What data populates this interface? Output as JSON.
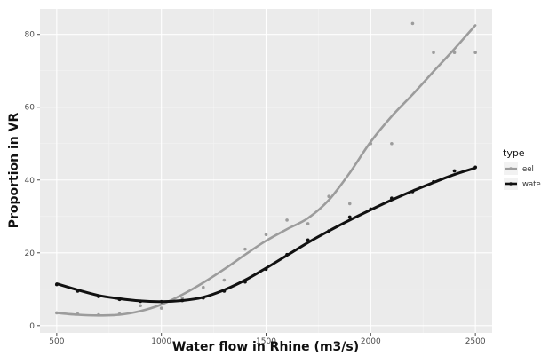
{
  "chart_data": {
    "type": "scatter",
    "xlabel": "Water flow in Rhine (m3/s)",
    "ylabel": "Proportion in VR",
    "xlim": [
      420,
      2580
    ],
    "ylim": [
      -2,
      87
    ],
    "x_ticks": [
      500,
      1000,
      1500,
      2000,
      2500
    ],
    "y_ticks": [
      0,
      20,
      40,
      60,
      80
    ],
    "grid": true,
    "legend": {
      "title": "type",
      "placement": "right"
    },
    "series": [
      {
        "name": "eel",
        "color": "#9c9c9c",
        "points": [
          [
            500,
            3.5
          ],
          [
            600,
            3.2
          ],
          [
            700,
            3.0
          ],
          [
            800,
            3.2
          ],
          [
            900,
            5.5
          ],
          [
            1000,
            4.8
          ],
          [
            1100,
            7.5
          ],
          [
            1200,
            10.5
          ],
          [
            1300,
            12.5
          ],
          [
            1400,
            21.0
          ],
          [
            1500,
            25.0
          ],
          [
            1600,
            29.0
          ],
          [
            1700,
            28.0
          ],
          [
            1800,
            35.5
          ],
          [
            1900,
            33.5
          ],
          [
            2000,
            50.0
          ],
          [
            2100,
            50.0
          ],
          [
            2200,
            83.0
          ],
          [
            2300,
            75.0
          ],
          [
            2400,
            75.0
          ],
          [
            2500,
            75.0
          ]
        ],
        "smooth": [
          [
            500,
            3.5
          ],
          [
            600,
            3.0
          ],
          [
            700,
            2.8
          ],
          [
            800,
            3.0
          ],
          [
            900,
            4.0
          ],
          [
            1000,
            5.8
          ],
          [
            1100,
            8.5
          ],
          [
            1200,
            11.8
          ],
          [
            1300,
            15.5
          ],
          [
            1400,
            19.5
          ],
          [
            1500,
            23.3
          ],
          [
            1600,
            26.5
          ],
          [
            1700,
            29.5
          ],
          [
            1800,
            34.5
          ],
          [
            1900,
            42.0
          ],
          [
            2000,
            50.5
          ],
          [
            2100,
            57.5
          ],
          [
            2200,
            63.5
          ],
          [
            2300,
            69.8
          ],
          [
            2400,
            76.0
          ],
          [
            2500,
            82.5
          ]
        ]
      },
      {
        "name": "wate",
        "color": "#111111",
        "points": [
          [
            500,
            11.3
          ],
          [
            600,
            9.5
          ],
          [
            700,
            8.0
          ],
          [
            800,
            7.2
          ],
          [
            900,
            6.7
          ],
          [
            1000,
            6.6
          ],
          [
            1100,
            6.9
          ],
          [
            1200,
            7.6
          ],
          [
            1300,
            9.5
          ],
          [
            1400,
            12.0
          ],
          [
            1500,
            15.5
          ],
          [
            1600,
            19.5
          ],
          [
            1700,
            23.5
          ],
          [
            1800,
            26.0
          ],
          [
            1900,
            29.8
          ],
          [
            2000,
            32.0
          ],
          [
            2100,
            35.0
          ],
          [
            2200,
            36.8
          ],
          [
            2300,
            39.5
          ],
          [
            2400,
            42.5
          ],
          [
            2500,
            43.5
          ]
        ],
        "smooth": [
          [
            500,
            11.5
          ],
          [
            600,
            9.8
          ],
          [
            700,
            8.3
          ],
          [
            800,
            7.4
          ],
          [
            900,
            6.8
          ],
          [
            1000,
            6.6
          ],
          [
            1100,
            6.9
          ],
          [
            1200,
            7.8
          ],
          [
            1300,
            9.8
          ],
          [
            1400,
            12.5
          ],
          [
            1500,
            15.8
          ],
          [
            1600,
            19.3
          ],
          [
            1700,
            22.8
          ],
          [
            1800,
            26.0
          ],
          [
            1900,
            29.0
          ],
          [
            2000,
            31.8
          ],
          [
            2100,
            34.5
          ],
          [
            2200,
            37.0
          ],
          [
            2300,
            39.3
          ],
          [
            2400,
            41.5
          ],
          [
            2500,
            43.3
          ]
        ]
      }
    ]
  }
}
